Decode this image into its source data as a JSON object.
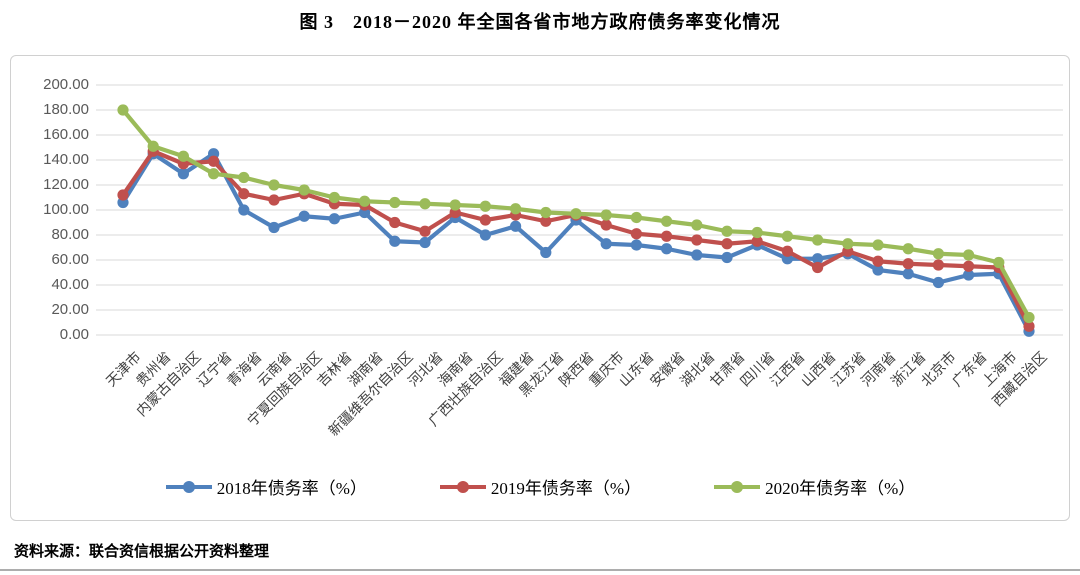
{
  "title": "图 3　2018－2020 年全国各省市地方政府债务率变化情况",
  "source_note": "资料来源：联合资信根据公开资料整理",
  "chart_data": {
    "type": "line",
    "title": "图 3　2018－2020 年全国各省市地方政府债务率变化情况",
    "xlabel": "",
    "ylabel": "",
    "ylim": [
      0,
      200
    ],
    "ytick_step": 20,
    "ytick_labels_top_down": [
      "200.00",
      "180.00",
      "160.00",
      "140.00",
      "120.00",
      "100.00",
      "80.00",
      "60.00",
      "40.00",
      "20.00",
      "0.00"
    ],
    "grid": true,
    "legend_position": "bottom",
    "categories": [
      "天津市",
      "贵州省",
      "内蒙古自治区",
      "辽宁省",
      "青海省",
      "云南省",
      "宁夏回族自治区",
      "吉林省",
      "湖南省",
      "新疆维吾尔自治区",
      "河北省",
      "海南省",
      "广西壮族自治区",
      "福建省",
      "黑龙江省",
      "陕西省",
      "重庆市",
      "山东省",
      "安徽省",
      "湖北省",
      "甘肃省",
      "四川省",
      "江西省",
      "山西省",
      "江苏省",
      "河南省",
      "浙江省",
      "北京市",
      "广东省",
      "上海市",
      "西藏自治区"
    ],
    "series": [
      {
        "name": "2018年债务率（%）",
        "color": "#4F81BD",
        "values": [
          106,
          145,
          129,
          145,
          100,
          86,
          95,
          93,
          98,
          75,
          74,
          94,
          80,
          87,
          66,
          92,
          73,
          72,
          69,
          64,
          62,
          72,
          61,
          61,
          65,
          52,
          49,
          42,
          48,
          49,
          3
        ]
      },
      {
        "name": "2019年债务率（%）",
        "color": "#C0504D",
        "values": [
          112,
          147,
          137,
          139,
          113,
          108,
          113,
          105,
          104,
          90,
          83,
          98,
          92,
          96,
          91,
          96,
          88,
          81,
          79,
          76,
          73,
          75,
          67,
          54,
          67,
          59,
          57,
          56,
          55,
          54,
          7
        ]
      },
      {
        "name": "2020年债务率（%）",
        "color": "#9BBB59",
        "values": [
          180,
          151,
          143,
          129,
          126,
          120,
          116,
          110,
          107,
          106,
          105,
          104,
          103,
          101,
          98,
          97,
          96,
          94,
          91,
          88,
          83,
          82,
          79,
          76,
          73,
          72,
          69,
          65,
          64,
          58,
          14
        ]
      }
    ]
  }
}
